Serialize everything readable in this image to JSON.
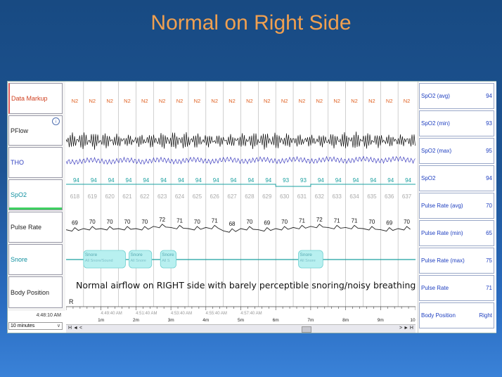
{
  "slide": {
    "title": "Normal on Right Side"
  },
  "channels": [
    {
      "label": "Data Markup",
      "color": "red"
    },
    {
      "label": "PFlow",
      "color": "dark"
    },
    {
      "label": "THO",
      "color": "blue"
    },
    {
      "label": "SpO2",
      "color": "teal"
    },
    {
      "label": "Pulse Rate",
      "color": "dark"
    },
    {
      "label": "Snore",
      "color": "teal"
    },
    {
      "label": "Body Position",
      "color": "dark"
    }
  ],
  "stage_label": "N2",
  "epochs": [
    "618",
    "619",
    "620",
    "621",
    "622",
    "623",
    "624",
    "625",
    "626",
    "627",
    "628",
    "629",
    "630",
    "631",
    "632",
    "633",
    "634",
    "635",
    "636",
    "637"
  ],
  "spo2_values": [
    "94",
    "94",
    "94",
    "94",
    "94",
    "94",
    "94",
    "94",
    "94",
    "94",
    "94",
    "94",
    "93",
    "93",
    "94",
    "94",
    "94",
    "94",
    "94",
    "94"
  ],
  "pulse_values": [
    "69",
    "70",
    "70",
    "70",
    "70",
    "72",
    "71",
    "70",
    "71",
    "68",
    "70",
    "69",
    "70",
    "71",
    "72",
    "71",
    "71",
    "70",
    "69",
    "70"
  ],
  "snore_events": [
    {
      "title": "Snore",
      "sub": "All Snore/Sound"
    },
    {
      "title": "Snore",
      "sub": "All Snore"
    },
    {
      "title": "Snore",
      "sub": "All S"
    },
    {
      "title": "Snore",
      "sub": "All Snore"
    }
  ],
  "annotation": "Normal airflow on RIGHT side with barely perceptible snoring/noisy breathing",
  "body_position_marker": "R",
  "time_axis": {
    "top_labels": [
      "4:49:40 AM",
      "4:51:40 AM",
      "4:53:40 AM",
      "4:55:40 AM",
      "4:57:40 AM"
    ],
    "bottom_labels": [
      "1m",
      "2m",
      "3m",
      "4m",
      "5m",
      "6m",
      "7m",
      "8m",
      "9m",
      "10"
    ]
  },
  "left_time": "4:48:10 AM",
  "window_select": "10 minutes",
  "right_panel": [
    {
      "name": "SpO2 (avg)",
      "value": "94"
    },
    {
      "name": "SpO2 (min)",
      "value": "93"
    },
    {
      "name": "SpO2 (max)",
      "value": "95"
    },
    {
      "name": "SpO2",
      "value": "94"
    },
    {
      "name": "Pulse Rate (avg)",
      "value": "70"
    },
    {
      "name": "Pulse Rate (min)",
      "value": "65"
    },
    {
      "name": "Pulse Rate (max)",
      "value": "75"
    },
    {
      "name": "Pulse Rate",
      "value": "71"
    },
    {
      "name": "Body Position",
      "value": "Right"
    }
  ],
  "scroll": {
    "left_btns": "H ◄ <",
    "right_btns": "> ► H"
  },
  "colors": {
    "title": "#f0a050",
    "stage": "#e06020",
    "tho": "#4040c0",
    "teal": "#1aa0a0",
    "snore_box": "#b8f0f0"
  }
}
